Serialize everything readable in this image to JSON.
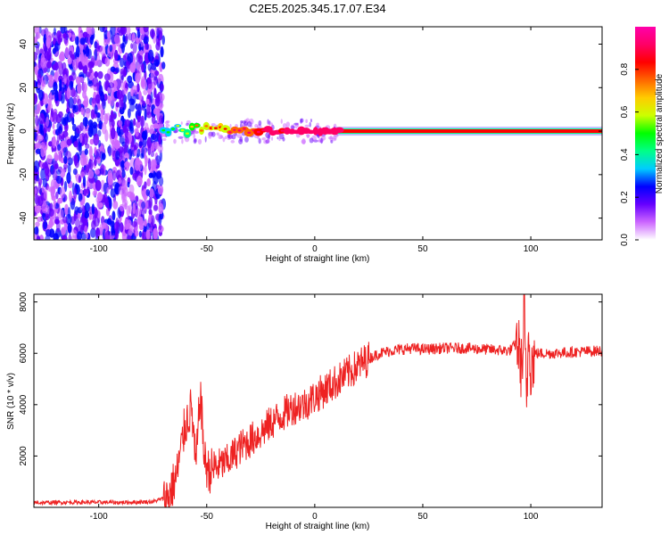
{
  "title": "C2E5.2025.345.17.07.E34",
  "colors": {
    "signal": "#ff0000",
    "snr_line": "#ee2222",
    "frame": "#000000"
  },
  "chart_data": [
    {
      "type": "heatmap",
      "xlabel": "Height of straight line (km)",
      "ylabel": "Frequency (Hz)",
      "xlim": [
        -130,
        133
      ],
      "ylim": [
        -50,
        48
      ],
      "xticks": [
        -100,
        -50,
        0,
        50,
        100
      ],
      "xtick_labels": [
        "-100",
        "-50",
        "0",
        "50",
        "100"
      ],
      "yticks": [
        -40,
        -20,
        0,
        20,
        40
      ],
      "ytick_labels": [
        "-40",
        "-20",
        "0",
        "20",
        "40"
      ],
      "noise_region_x": [
        -130,
        -70
      ],
      "signal_start_x": -70,
      "carrier_frequency": 0,
      "colorbar": {
        "label": "Normalized spectral amplitude",
        "range": [
          0,
          1
        ],
        "ticks": [
          0.0,
          0.2,
          0.4,
          0.6,
          0.8
        ],
        "tick_labels": [
          "0.0",
          "0.2",
          "0.4",
          "0.6",
          "0.8"
        ],
        "colormap": [
          "#ffffff",
          "#cc66ff",
          "#6600ff",
          "#0000ff",
          "#00ccff",
          "#00ff88",
          "#00ff00",
          "#ccff00",
          "#ffcc00",
          "#ff6600",
          "#ff0000",
          "#ff0066",
          "#ff00aa"
        ]
      }
    },
    {
      "type": "line",
      "xlabel": "Height of straight line (km)",
      "ylabel": "SNR (10 * v/v)",
      "xlim": [
        -130,
        133
      ],
      "ylim": [
        0,
        8300
      ],
      "xticks": [
        -100,
        -50,
        0,
        50,
        100
      ],
      "xtick_labels": [
        "-100",
        "-50",
        "0",
        "50",
        "100"
      ],
      "yticks": [
        2000,
        4000,
        6000,
        8000
      ],
      "ytick_labels": [
        "2000",
        "4000",
        "6000",
        "8000"
      ],
      "series": [
        {
          "x": [
            -130,
            -110,
            -90,
            -75,
            -68,
            -64,
            -60,
            -57,
            -55,
            -53,
            -51,
            -49,
            -45,
            -40,
            -35,
            -30,
            -25,
            -20,
            -15,
            -10,
            -5,
            0,
            5,
            10,
            15,
            20,
            25,
            30,
            35,
            40,
            45,
            50,
            60,
            70,
            80,
            90,
            94,
            96,
            97,
            98,
            99,
            100,
            102,
            110,
            120,
            133
          ],
          "y": [
            180,
            200,
            190,
            220,
            400,
            1200,
            3200,
            3900,
            1500,
            4500,
            1800,
            1400,
            1600,
            1800,
            2300,
            2600,
            2900,
            3300,
            3600,
            3900,
            4000,
            4300,
            4600,
            4900,
            5200,
            5500,
            5800,
            6000,
            6100,
            6150,
            6200,
            6150,
            6200,
            6200,
            6150,
            6100,
            6400,
            5200,
            7800,
            3800,
            7000,
            5500,
            6000,
            6000,
            6050,
            6100
          ]
        }
      ]
    }
  ]
}
